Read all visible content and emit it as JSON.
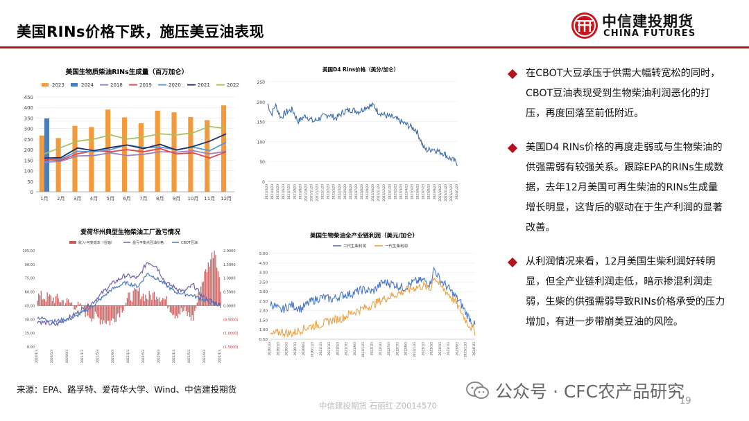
{
  "header": {
    "title": "美国RINs价格下跌，施压美豆油表现",
    "logo_cn": "中信建投期货",
    "logo_en": "CHINA FUTURES",
    "accent_color": "#b3121c"
  },
  "bullets": [
    "在CBOT大豆承压于供需大幅转宽松的同时，CBOT豆油表现受到生物柴油利润恶化的打压，再度回落至前低附近。",
    "美国D4 RINs价格的再度走弱或与生物柴油的供强需弱有较强关系。跟踪EPA的RINs生成数据，去年12月美国可再生柴油的RINs生成量增长明显，这背后的驱动在于生产利润的显著改善。",
    "从利润情况来看，12月美国生柴利润好转明显，但全产业链利润走低，暗示掺混利润走弱，生柴的供强需弱导致RINs价格承受的压力增加，有进一步带崩美豆油的风险。"
  ],
  "source": "来源：EPA、路孚特、爱荷华大学、Wind、中信建投期货",
  "footer": "中信建投期货 石丽红 Z0014570",
  "watermark": "公众号 · CFC农产品研究",
  "page_number": "19",
  "chart_data": [
    {
      "id": "rins-generation",
      "type": "bar",
      "title": "美国生物质柴油RINs生成量（百万加仑）",
      "categories": [
        "1月",
        "2月",
        "3月",
        "4月",
        "5月",
        "6月",
        "7月",
        "8月",
        "9月",
        "10月",
        "11月",
        "12月"
      ],
      "ylim": [
        0,
        450
      ],
      "yticks": [
        0,
        50,
        100,
        150,
        200,
        250,
        300,
        350,
        400,
        450
      ],
      "legend_position": "top",
      "bar_series": [
        {
          "name": "2023",
          "color": "#f29a3c",
          "values": [
            267,
            255,
            313,
            307,
            390,
            353,
            325,
            385,
            377,
            355,
            340,
            410
          ]
        },
        {
          "name": "2024",
          "color": "#4a7ebb",
          "values": [
            348,
            null,
            null,
            null,
            null,
            null,
            null,
            null,
            null,
            null,
            null,
            null
          ]
        }
      ],
      "line_series": [
        {
          "name": "2018",
          "color": "#9b7fc4",
          "values": [
            140,
            145,
            170,
            172,
            185,
            172,
            178,
            190,
            188,
            195,
            180,
            192
          ]
        },
        {
          "name": "2019",
          "color": "#e0484f",
          "values": [
            152,
            150,
            180,
            195,
            190,
            200,
            190,
            205,
            180,
            185,
            160,
            190
          ]
        },
        {
          "name": "2020",
          "color": "#5b9bd5",
          "values": [
            162,
            155,
            192,
            190,
            200,
            222,
            210,
            212,
            200,
            212,
            195,
            235
          ]
        },
        {
          "name": "2021",
          "color": "#1f2f6b",
          "values": [
            160,
            162,
            208,
            195,
            210,
            222,
            205,
            225,
            198,
            215,
            240,
            275
          ]
        },
        {
          "name": "2022",
          "color": "#a6c25a",
          "values": [
            180,
            210,
            240,
            250,
            270,
            250,
            260,
            275,
            270,
            280,
            310,
            300
          ]
        }
      ]
    },
    {
      "id": "d4-rins-price",
      "type": "line",
      "title": "美国D4 Rins价格（美分/加仑）",
      "ylim": [
        0,
        250
      ],
      "yticks": [
        0,
        50,
        100,
        150,
        200,
        250
      ],
      "x_start": "2021/3/23",
      "x_end": "2024/1/23",
      "x_tick_labels": [
        "2021/3/23",
        "2021/4/23",
        "2021/5/23",
        "2021/6/23",
        "2021/7/23",
        "2021/8/23",
        "2021/9/23",
        "2021/10/23",
        "2021/11/23",
        "2021/12/23",
        "2022/1/23",
        "2022/2/23",
        "2022/3/23",
        "2022/4/23",
        "2022/5/23",
        "2022/6/23",
        "2022/7/23",
        "2022/8/23",
        "2022/9/23",
        "2022/10/23",
        "2022/11/23",
        "2022/12/23",
        "2023/1/23",
        "2023/2/23",
        "2023/3/23",
        "2023/4/23",
        "2023/5/23",
        "2023/6/23",
        "2023/7/23",
        "2023/8/23",
        "2023/9/23",
        "2023/10/23",
        "2023/11/23",
        "2023/12/23",
        "2024/1/23"
      ],
      "series": [
        {
          "color": "#3d69a8",
          "keypoints": [
            [
              0,
              195
            ],
            [
              0.02,
              168
            ],
            [
              0.04,
              192
            ],
            [
              0.07,
              160
            ],
            [
              0.1,
              175
            ],
            [
              0.13,
              180
            ],
            [
              0.16,
              150
            ],
            [
              0.2,
              165
            ],
            [
              0.24,
              150
            ],
            [
              0.28,
              160
            ],
            [
              0.32,
              168
            ],
            [
              0.36,
              158
            ],
            [
              0.4,
              175
            ],
            [
              0.44,
              180
            ],
            [
              0.48,
              175
            ],
            [
              0.52,
              188
            ],
            [
              0.56,
              190
            ],
            [
              0.58,
              175
            ],
            [
              0.62,
              165
            ],
            [
              0.66,
              160
            ],
            [
              0.7,
              150
            ],
            [
              0.74,
              140
            ],
            [
              0.78,
              130
            ],
            [
              0.8,
              110
            ],
            [
              0.82,
              85
            ],
            [
              0.84,
              78
            ],
            [
              0.87,
              82
            ],
            [
              0.9,
              75
            ],
            [
              0.93,
              70
            ],
            [
              0.95,
              60
            ],
            [
              0.97,
              55
            ],
            [
              1,
              45
            ]
          ]
        }
      ]
    },
    {
      "id": "iowa-biodiesel-margin",
      "type": "bar",
      "title": "爱荷华州典型生物柴油工厂盈亏情况",
      "legend": [
        "收入-可变成本（右轴）",
        "盈亏平衡点豆油价格",
        "CBOT豆油"
      ],
      "left_ylim": [
        0,
        105
      ],
      "left_yticks": [
        "105.00",
        "90.00",
        "75.00",
        "60.00",
        "45.00",
        "30.00",
        "15.00",
        "0.00"
      ],
      "right_ylim": [
        -1.5,
        2.0
      ],
      "right_yticks": [
        "2.0000",
        "1.5000",
        "1.0000",
        "0.5000",
        "0.0000",
        "(0.5000)",
        "(1.0000)",
        "(1.5000)"
      ],
      "x_tick_labels": [
        "2020/1/3",
        "2020/5/3",
        "2020/9/3",
        "2021/1/3",
        "2021/5/3",
        "2021/9/3",
        "2022/1/3",
        "2022/5/3",
        "2022/9/3",
        "2023/1/3",
        "2023/5/3",
        "2023/9/3",
        "2024/1/3"
      ],
      "margin_keypoints": [
        [
          0,
          0.35
        ],
        [
          0.1,
          0.25
        ],
        [
          0.2,
          0.05
        ],
        [
          0.3,
          -0.4
        ],
        [
          0.4,
          -0.6
        ],
        [
          0.45,
          -0.2
        ],
        [
          0.5,
          0.3
        ],
        [
          0.55,
          0.5
        ],
        [
          0.6,
          0.3
        ],
        [
          0.65,
          0.45
        ],
        [
          0.7,
          0.2
        ],
        [
          0.75,
          -0.3
        ],
        [
          0.8,
          -0.2
        ],
        [
          0.85,
          -0.5
        ],
        [
          0.9,
          0.9
        ],
        [
          0.94,
          1.6
        ],
        [
          0.97,
          2.1
        ],
        [
          1,
          0.6
        ]
      ],
      "breakeven_keypoints": [
        [
          0,
          28
        ],
        [
          0.1,
          24
        ],
        [
          0.2,
          35
        ],
        [
          0.3,
          48
        ],
        [
          0.4,
          68
        ],
        [
          0.48,
          78
        ],
        [
          0.55,
          75
        ],
        [
          0.6,
          93
        ],
        [
          0.65,
          88
        ],
        [
          0.7,
          70
        ],
        [
          0.75,
          65
        ],
        [
          0.8,
          60
        ],
        [
          0.85,
          68
        ],
        [
          0.9,
          55
        ],
        [
          0.95,
          50
        ],
        [
          1,
          45
        ]
      ],
      "cbot_keypoints": [
        [
          0,
          32
        ],
        [
          0.1,
          28
        ],
        [
          0.2,
          32
        ],
        [
          0.3,
          44
        ],
        [
          0.4,
          62
        ],
        [
          0.48,
          70
        ],
        [
          0.55,
          66
        ],
        [
          0.6,
          80
        ],
        [
          0.65,
          75
        ],
        [
          0.7,
          68
        ],
        [
          0.75,
          60
        ],
        [
          0.8,
          58
        ],
        [
          0.85,
          56
        ],
        [
          0.9,
          52
        ],
        [
          0.95,
          48
        ],
        [
          1,
          46
        ]
      ],
      "bar_color": "#c85a5a",
      "breakeven_color": "#7060a8",
      "cbot_color": "#4a78c4"
    },
    {
      "id": "us-biodiesel-chain-profit",
      "type": "line",
      "title": "美国生物柴油全产业链利润（美元/加仑）",
      "ylim": [
        0.5,
        5.0
      ],
      "yticks": [
        "5.00",
        "4.50",
        "4.00",
        "3.50",
        "3.00",
        "2.50",
        "2.00",
        "1.50",
        "1.00",
        "0.50"
      ],
      "x_tick_labels": [
        "2020/1/3",
        "2020/3/3",
        "2020/5/3",
        "2020/7/3",
        "2020/9/3",
        "2020/11/3",
        "2021/1/3",
        "2021/3/3",
        "2021/5/3",
        "2021/7/3",
        "2021/9/3",
        "2021/11/3",
        "2022/1/3",
        "2022/3/3",
        "2022/5/3",
        "2022/7/3",
        "2022/9/3",
        "2022/11/3",
        "2023/1/3",
        "2023/3/3",
        "2023/5/3",
        "2023/7/3",
        "2023/9/3",
        "2023/11/3",
        "2024/1/3"
      ],
      "series": [
        {
          "name": "二代生柴利润",
          "color": "#4a78c4",
          "keypoints": [
            [
              0,
              2.4
            ],
            [
              0.05,
              2.0
            ],
            [
              0.1,
              2.3
            ],
            [
              0.15,
              2.1
            ],
            [
              0.2,
              2.5
            ],
            [
              0.25,
              2.7
            ],
            [
              0.3,
              2.6
            ],
            [
              0.35,
              2.8
            ],
            [
              0.4,
              2.9
            ],
            [
              0.45,
              3.1
            ],
            [
              0.5,
              3.0
            ],
            [
              0.55,
              3.5
            ],
            [
              0.6,
              3.4
            ],
            [
              0.65,
              3.2
            ],
            [
              0.7,
              3.5
            ],
            [
              0.75,
              3.6
            ],
            [
              0.78,
              3.4
            ],
            [
              0.8,
              4.2
            ],
            [
              0.83,
              3.6
            ],
            [
              0.86,
              3.3
            ],
            [
              0.9,
              2.8
            ],
            [
              0.93,
              2.4
            ],
            [
              0.96,
              1.8
            ],
            [
              1,
              1.2
            ]
          ]
        },
        {
          "name": "一代生柴利润",
          "color": "#f2a03c",
          "keypoints": [
            [
              0,
              0.7
            ],
            [
              0.05,
              0.9
            ],
            [
              0.1,
              0.8
            ],
            [
              0.15,
              1.0
            ],
            [
              0.2,
              1.2
            ],
            [
              0.25,
              1.3
            ],
            [
              0.3,
              1.5
            ],
            [
              0.35,
              1.6
            ],
            [
              0.4,
              1.9
            ],
            [
              0.45,
              2.1
            ],
            [
              0.5,
              2.3
            ],
            [
              0.55,
              2.6
            ],
            [
              0.6,
              2.8
            ],
            [
              0.65,
              3.0
            ],
            [
              0.7,
              3.2
            ],
            [
              0.75,
              3.3
            ],
            [
              0.78,
              3.1
            ],
            [
              0.8,
              3.8
            ],
            [
              0.83,
              3.3
            ],
            [
              0.86,
              3.0
            ],
            [
              0.9,
              2.5
            ],
            [
              0.93,
              2.0
            ],
            [
              0.96,
              1.4
            ],
            [
              1,
              0.9
            ]
          ]
        }
      ]
    }
  ]
}
